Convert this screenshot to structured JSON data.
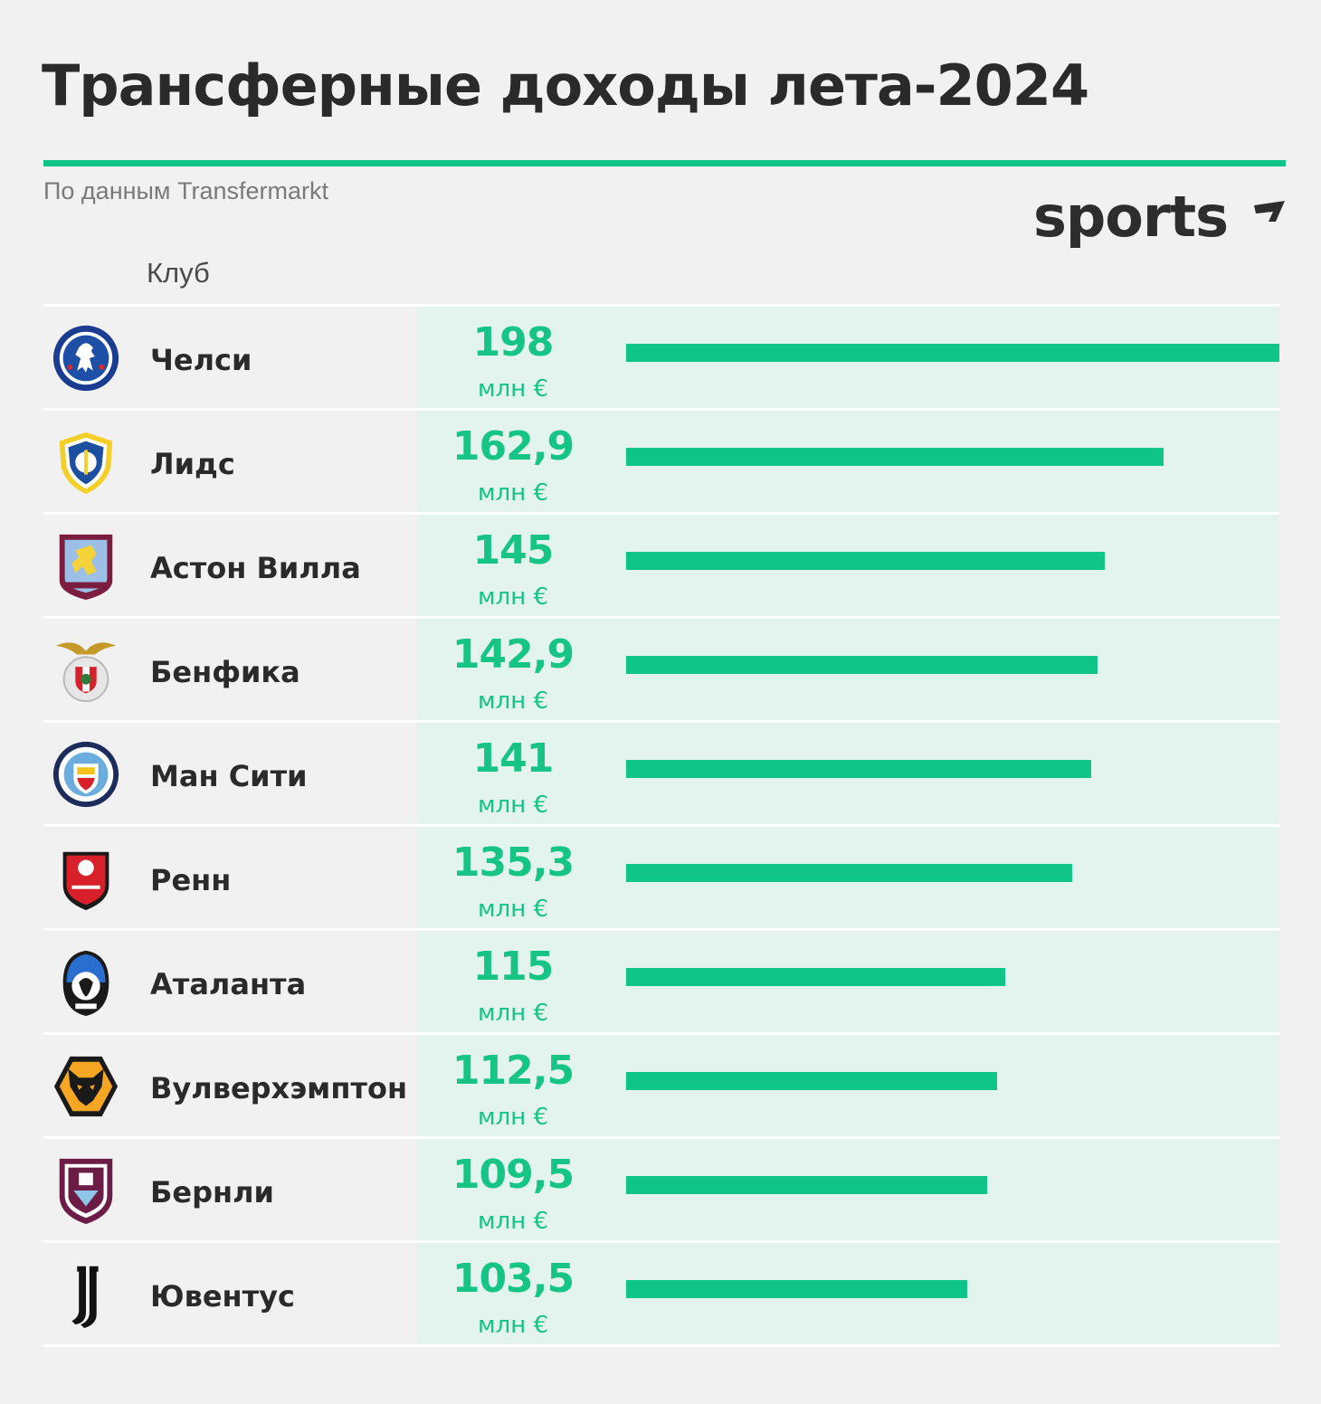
{
  "title": "Трансферные доходы лета-2024",
  "source": "По данным Transfermarkt",
  "brand": "sports",
  "column_header": "Клуб",
  "colors": {
    "accent": "#0fc487",
    "row_shade": "#e3f3ed",
    "background": "#f1f1f1"
  },
  "chart_data": {
    "type": "bar",
    "orientation": "horizontal",
    "unit": "млн €",
    "xlim": [
      0,
      198
    ],
    "categories": [
      "Челси",
      "Лидс",
      "Астон Вилла",
      "Бенфика",
      "Ман Сити",
      "Ренн",
      "Аталанта",
      "Вулверхэмптон",
      "Бернли",
      "Ювентус"
    ],
    "values": [
      198,
      162.9,
      145,
      142.9,
      141,
      135.3,
      115,
      112.5,
      109.5,
      103.5
    ],
    "value_labels": [
      "198",
      "162,9",
      "145",
      "142,9",
      "141",
      "135,3",
      "115",
      "112,5",
      "109,5",
      "103,5"
    ]
  },
  "rows": [
    {
      "club": "Челси",
      "value": "198",
      "unit": "млн €",
      "crest": "chelsea-crest-icon"
    },
    {
      "club": "Лидс",
      "value": "162,9",
      "unit": "млн €",
      "crest": "leeds-crest-icon"
    },
    {
      "club": "Астон Вилла",
      "value": "145",
      "unit": "млн €",
      "crest": "aston-villa-crest-icon"
    },
    {
      "club": "Бенфика",
      "value": "142,9",
      "unit": "млн €",
      "crest": "benfica-crest-icon"
    },
    {
      "club": "Ман Сити",
      "value": "141",
      "unit": "млн €",
      "crest": "man-city-crest-icon"
    },
    {
      "club": "Ренн",
      "value": "135,3",
      "unit": "млн €",
      "crest": "rennes-crest-icon"
    },
    {
      "club": "Аталанта",
      "value": "115",
      "unit": "млн €",
      "crest": "atalanta-crest-icon"
    },
    {
      "club": "Вулверхэмптон",
      "value": "112,5",
      "unit": "млн €",
      "crest": "wolves-crest-icon"
    },
    {
      "club": "Бернли",
      "value": "109,5",
      "unit": "млн €",
      "crest": "burnley-crest-icon"
    },
    {
      "club": "Ювентус",
      "value": "103,5",
      "unit": "млн €",
      "crest": "juventus-crest-icon"
    }
  ]
}
